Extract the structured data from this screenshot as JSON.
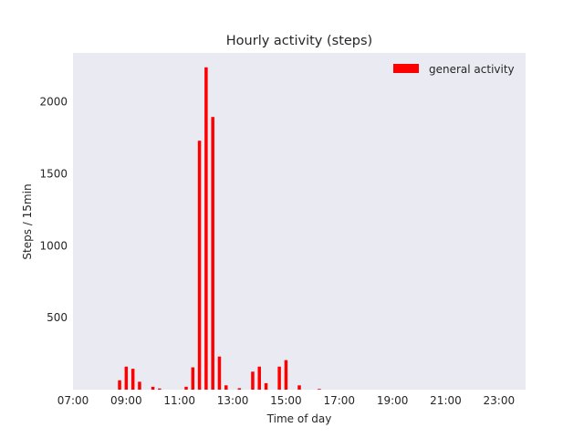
{
  "chart_data": {
    "type": "bar",
    "title": "Hourly activity (steps)",
    "xlabel": "Time of day",
    "ylabel": "Steps / 15min",
    "bar_color": "#ff0000",
    "plot_background": "#eaeaf2",
    "grid": false,
    "legend": {
      "position": "top-right"
    },
    "series": [
      {
        "name": "general activity",
        "bin_minutes": 15,
        "data": [
          [
            "08:45",
            65
          ],
          [
            "09:00",
            160
          ],
          [
            "09:15",
            145
          ],
          [
            "09:30",
            55
          ],
          [
            "10:00",
            20
          ],
          [
            "10:15",
            8
          ],
          [
            "11:15",
            20
          ],
          [
            "11:30",
            155
          ],
          [
            "11:45",
            1730
          ],
          [
            "12:00",
            2240
          ],
          [
            "12:15",
            1895
          ],
          [
            "12:30",
            230
          ],
          [
            "12:45",
            30
          ],
          [
            "13:15",
            10
          ],
          [
            "13:45",
            125
          ],
          [
            "14:00",
            160
          ],
          [
            "14:15",
            45
          ],
          [
            "14:45",
            160
          ],
          [
            "15:00",
            205
          ],
          [
            "15:30",
            30
          ],
          [
            "16:15",
            5
          ]
        ]
      }
    ],
    "xlim": [
      "07:00",
      "24:00"
    ],
    "ylim": [
      0,
      2340
    ],
    "xticks": [
      "07:00",
      "09:00",
      "11:00",
      "13:00",
      "15:00",
      "17:00",
      "19:00",
      "21:00",
      "23:00"
    ],
    "yticks": [
      500,
      1000,
      1500,
      2000
    ]
  }
}
